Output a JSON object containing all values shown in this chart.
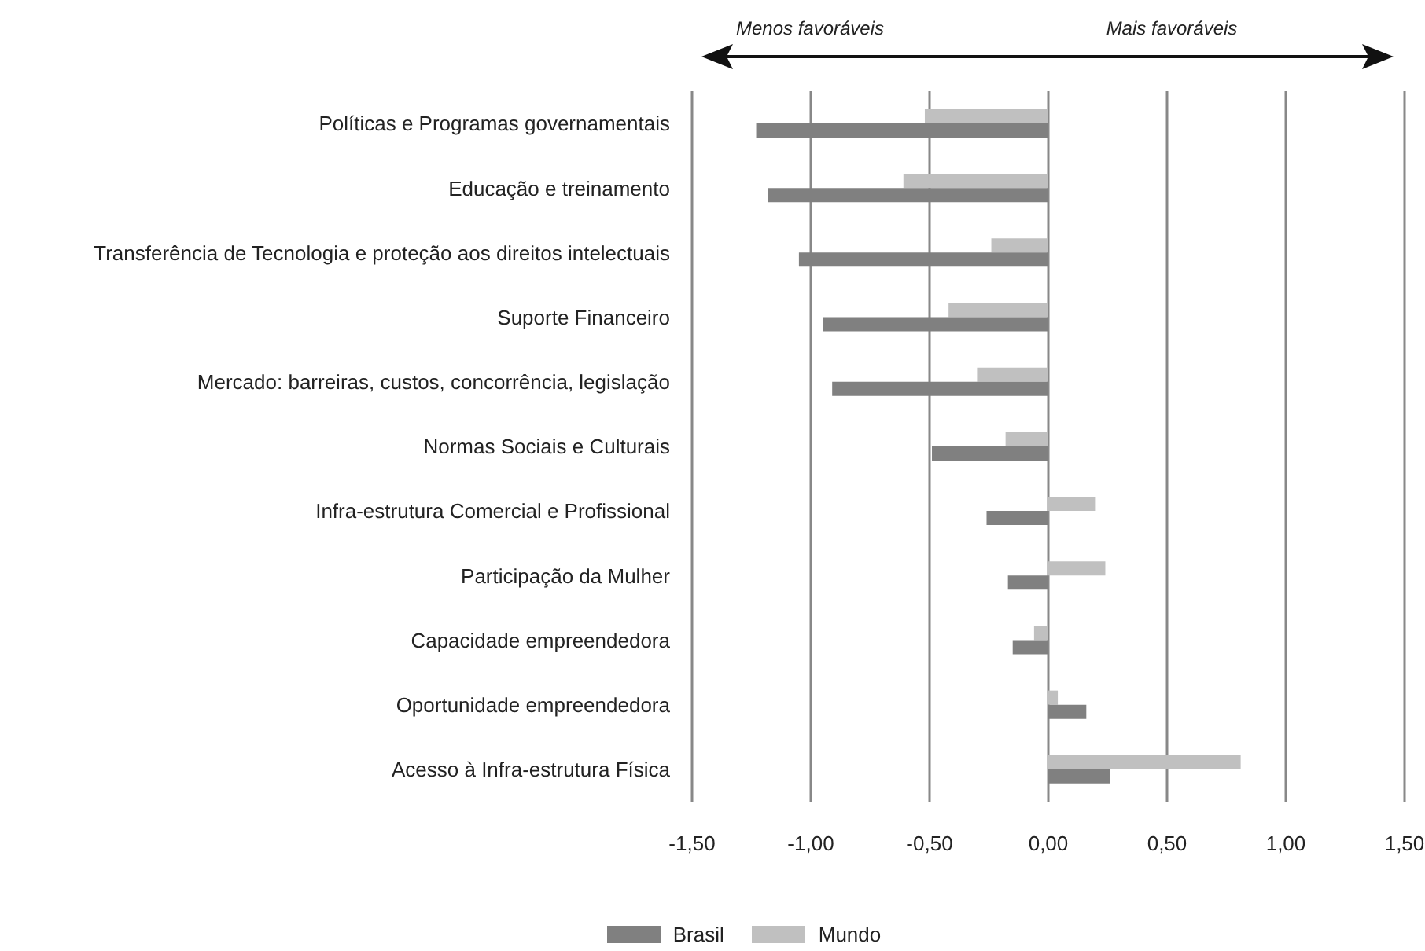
{
  "chart_data": {
    "type": "bar",
    "orientation": "horizontal",
    "categories": [
      "Políticas e Programas governamentais",
      "Educação e treinamento",
      "Transferência de Tecnologia e proteção aos direitos intelectuais",
      "Suporte Financeiro",
      "Mercado: barreiras, custos, concorrência, legislação",
      "Normas Sociais e Culturais",
      "Infra-estrutura Comercial e Profissional",
      "Participação da Mulher",
      "Capacidade empreendedora",
      "Oportunidade empreendedora",
      "Acesso à Infra-estrutura Física"
    ],
    "series": [
      {
        "name": "Brasil",
        "color": "#808080",
        "values": [
          -1.23,
          -1.18,
          -1.05,
          -0.95,
          -0.91,
          -0.49,
          -0.26,
          -0.17,
          -0.15,
          0.16,
          0.26
        ]
      },
      {
        "name": "Mundo",
        "color": "#c0c0c0",
        "values": [
          -0.52,
          -0.61,
          -0.24,
          -0.42,
          -0.3,
          -0.18,
          0.2,
          0.24,
          -0.06,
          0.04,
          0.81
        ]
      }
    ],
    "xlim": [
      -1.5,
      1.5
    ],
    "xticks": [
      {
        "value": -1.5,
        "label": "-1,50"
      },
      {
        "value": -1.0,
        "label": "-1,00"
      },
      {
        "value": -0.5,
        "label": "-0,50"
      },
      {
        "value": 0,
        "label": "0,00"
      },
      {
        "value": 0.5,
        "label": "0,50"
      },
      {
        "value": 1.0,
        "label": "1,00"
      },
      {
        "value": 1.5,
        "label": "1,50"
      }
    ],
    "grid": "x",
    "legend": "bottom",
    "annotations": [
      "Menos favoráveis",
      "Mais favoráveis"
    ]
  }
}
